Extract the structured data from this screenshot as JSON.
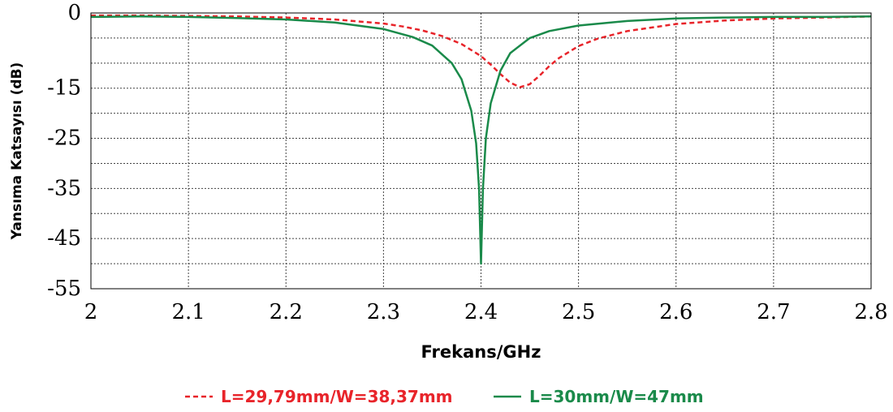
{
  "chart_data": {
    "type": "line",
    "title": "",
    "xlabel": "Frekans/GHz",
    "ylabel": "Yansıma Katsayısı (dB)",
    "xlim": [
      2,
      2.8
    ],
    "ylim": [
      -55,
      0
    ],
    "x_ticks": [
      "2",
      "2.1",
      "2.2",
      "2.3",
      "2.4",
      "2.5",
      "2.6",
      "2.7",
      "2.8"
    ],
    "y_ticks": [
      "0",
      "-15",
      "-25",
      "-35",
      "-45",
      "-55"
    ],
    "grid": true,
    "legend_position": "bottom",
    "series": [
      {
        "name": "L=29,79mm/W=38,37mm",
        "color": "#e8242a",
        "style": "dashed",
        "x": [
          2.0,
          2.05,
          2.1,
          2.15,
          2.2,
          2.25,
          2.3,
          2.32,
          2.34,
          2.36,
          2.38,
          2.4,
          2.41,
          2.42,
          2.43,
          2.44,
          2.45,
          2.46,
          2.47,
          2.48,
          2.5,
          2.52,
          2.55,
          2.6,
          2.65,
          2.7,
          2.75,
          2.8
        ],
        "y": [
          -0.5,
          -0.5,
          -0.6,
          -0.7,
          -0.9,
          -1.3,
          -2.1,
          -2.7,
          -3.5,
          -4.6,
          -6.2,
          -8.6,
          -10.3,
          -12.2,
          -13.9,
          -14.8,
          -14.2,
          -12.5,
          -10.6,
          -9.0,
          -6.6,
          -5.1,
          -3.6,
          -2.2,
          -1.5,
          -1.1,
          -0.9,
          -0.7
        ]
      },
      {
        "name": "L=30mm/W=47mm",
        "color": "#1a8a4a",
        "style": "solid",
        "x": [
          2.0,
          2.05,
          2.1,
          2.15,
          2.2,
          2.25,
          2.3,
          2.33,
          2.35,
          2.37,
          2.38,
          2.39,
          2.395,
          2.398,
          2.4,
          2.402,
          2.405,
          2.41,
          2.42,
          2.43,
          2.45,
          2.47,
          2.5,
          2.55,
          2.6,
          2.65,
          2.7,
          2.75,
          2.8
        ],
        "y": [
          -0.8,
          -0.7,
          -0.8,
          -1.0,
          -1.3,
          -1.9,
          -3.2,
          -4.8,
          -6.5,
          -10.0,
          -13.2,
          -19.5,
          -26.0,
          -35.0,
          -50.0,
          -35.0,
          -25.0,
          -18.0,
          -11.5,
          -8.0,
          -5.0,
          -3.6,
          -2.5,
          -1.6,
          -1.1,
          -0.9,
          -0.8,
          -0.8,
          -0.7
        ]
      }
    ]
  }
}
